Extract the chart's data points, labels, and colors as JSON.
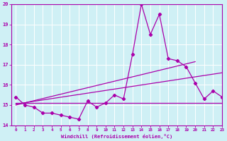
{
  "x": [
    0,
    1,
    2,
    3,
    4,
    5,
    6,
    7,
    8,
    9,
    10,
    11,
    12,
    13,
    14,
    15,
    16,
    17,
    18,
    19,
    20,
    21,
    22,
    23
  ],
  "line_data": [
    15.4,
    15.0,
    14.9,
    14.6,
    14.6,
    14.5,
    14.4,
    14.3,
    15.2,
    14.9,
    15.1,
    15.5,
    15.3,
    17.5,
    20.0,
    18.5,
    19.5,
    17.3,
    17.2,
    16.9,
    16.1,
    15.3,
    15.7,
    15.4
  ],
  "trend1_x": [
    0,
    23
  ],
  "trend1_y": [
    15.1,
    15.1
  ],
  "trend2_x": [
    0,
    23
  ],
  "trend2_y": [
    15.05,
    16.6
  ],
  "trend3_x": [
    0,
    20
  ],
  "trend3_y": [
    15.0,
    17.15
  ],
  "ylim": [
    14.0,
    20.0
  ],
  "xlim": [
    -0.5,
    23
  ],
  "yticks": [
    14,
    15,
    16,
    17,
    18,
    19,
    20
  ],
  "xticks": [
    0,
    1,
    2,
    3,
    4,
    5,
    6,
    7,
    8,
    9,
    10,
    11,
    12,
    13,
    14,
    15,
    16,
    17,
    18,
    19,
    20,
    21,
    22,
    23
  ],
  "xlabel": "Windchill (Refroidissement éolien,°C)",
  "bg_color": "#cff0f5",
  "line_color": "#aa00aa",
  "grid_color": "#ffffff",
  "spine_color": "#aa00aa"
}
